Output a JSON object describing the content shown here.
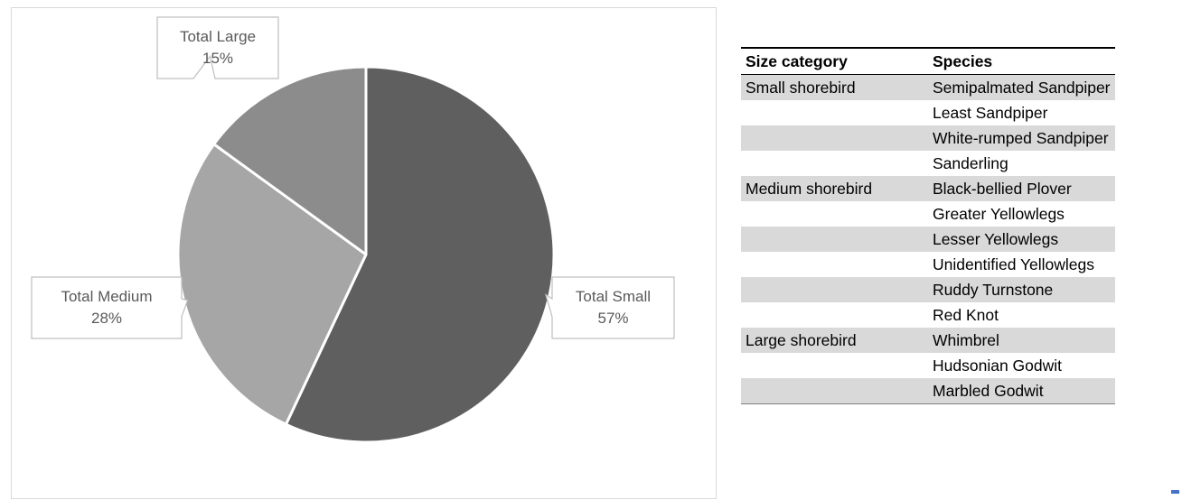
{
  "chart_data": {
    "type": "pie",
    "title": "",
    "slices": [
      {
        "label": "Total Small",
        "value": 57,
        "value_label": "57%",
        "color": "#5f5f5f"
      },
      {
        "label": "Total Medium",
        "value": 28,
        "value_label": "28%",
        "color": "#a6a6a6"
      },
      {
        "label": "Total Large",
        "value": 15,
        "value_label": "15%",
        "color": "#8c8c8c"
      }
    ],
    "start_angle": "12 o'clock",
    "direction": "clockwise",
    "data_labels": "callouts",
    "legend": "none"
  },
  "table": {
    "headers": [
      "Size category",
      "Species"
    ],
    "rows": [
      [
        "Small shorebird",
        "Semipalmated Sandpiper"
      ],
      [
        "",
        "Least Sandpiper"
      ],
      [
        "",
        "White-rumped Sandpiper"
      ],
      [
        "",
        "Sanderling"
      ],
      [
        "Medium shorebird",
        "Black-bellied Plover"
      ],
      [
        "",
        "Greater Yellowlegs"
      ],
      [
        "",
        "Lesser Yellowlegs"
      ],
      [
        "",
        "Unidentified Yellowlegs"
      ],
      [
        "",
        "Ruddy Turnstone"
      ],
      [
        "",
        "Red Knot"
      ],
      [
        "Large shorebird",
        "Whimbrel"
      ],
      [
        "",
        "Hudsonian Godwit"
      ],
      [
        "",
        "Marbled Godwit"
      ]
    ]
  }
}
